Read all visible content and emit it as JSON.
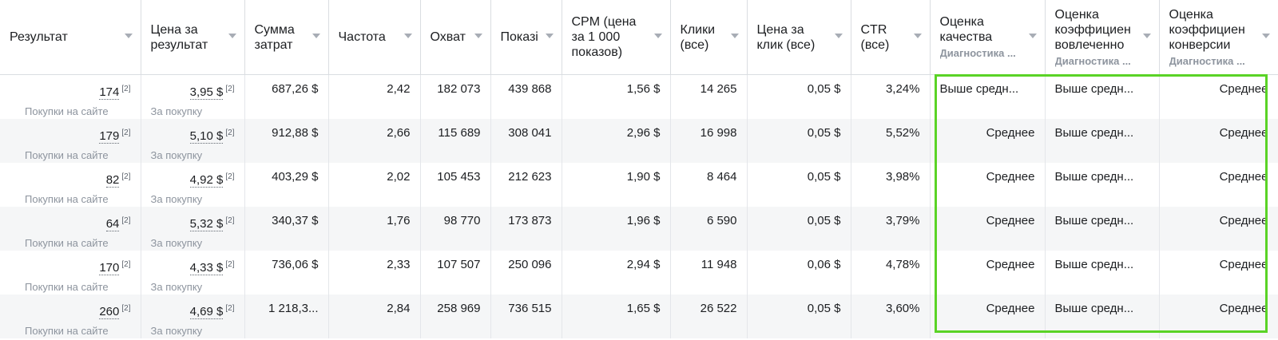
{
  "columns": [
    {
      "title": "Результат",
      "sub": ""
    },
    {
      "title": "Цена за\nрезультат",
      "sub": ""
    },
    {
      "title": "Сумма\nзатрат",
      "sub": ""
    },
    {
      "title": "Частота",
      "sub": ""
    },
    {
      "title": "Охват",
      "sub": ""
    },
    {
      "title": "Показі",
      "sub": ""
    },
    {
      "title": "CPM (цена\nза 1 000\nпоказов)",
      "sub": ""
    },
    {
      "title": "Клики\n(все)",
      "sub": ""
    },
    {
      "title": "Цена за\nклик (все)",
      "sub": ""
    },
    {
      "title": "CTR\n(все)",
      "sub": ""
    },
    {
      "title": "Оценка\nкачества",
      "sub": "Диагностика ..."
    },
    {
      "title": "Оценка\nкоэффициен\nвовлеченно",
      "sub": "Диагностика ..."
    },
    {
      "title": "Оценка\nкоэффициен\nконверсии",
      "sub": "Диагностика ..."
    }
  ],
  "ref_mark": "[2]",
  "result_sub": "Покупки на сайте",
  "price_sub": "За покупку",
  "rows": [
    {
      "result": "174",
      "price": "3,95 $",
      "spend": "687,26 $",
      "freq": "2,42",
      "reach": "182 073",
      "impr": "439 868",
      "cpm": "1,56 $",
      "clicks": "14 265",
      "cpc": "0,05 $",
      "ctr": "3,24%",
      "quality": "Выше средн...",
      "engagement": "Выше средн...",
      "conversion": "Среднее"
    },
    {
      "result": "179",
      "price": "5,10 $",
      "spend": "912,88 $",
      "freq": "2,66",
      "reach": "115 689",
      "impr": "308 041",
      "cpm": "2,96 $",
      "clicks": "16 998",
      "cpc": "0,05 $",
      "ctr": "5,52%",
      "quality": "Среднее",
      "engagement": "Выше средн...",
      "conversion": "Среднее"
    },
    {
      "result": "82",
      "price": "4,92 $",
      "spend": "403,29 $",
      "freq": "2,02",
      "reach": "105 453",
      "impr": "212 623",
      "cpm": "1,90 $",
      "clicks": "8 464",
      "cpc": "0,05 $",
      "ctr": "3,98%",
      "quality": "Среднее",
      "engagement": "Выше средн...",
      "conversion": "Среднее"
    },
    {
      "result": "64",
      "price": "5,32 $",
      "spend": "340,37 $",
      "freq": "1,76",
      "reach": "98 770",
      "impr": "173 873",
      "cpm": "1,96 $",
      "clicks": "6 590",
      "cpc": "0,05 $",
      "ctr": "3,79%",
      "quality": "Среднее",
      "engagement": "Выше средн...",
      "conversion": "Среднее"
    },
    {
      "result": "170",
      "price": "4,33 $",
      "spend": "736,06 $",
      "freq": "2,33",
      "reach": "107 507",
      "impr": "250 096",
      "cpm": "2,94 $",
      "clicks": "11 948",
      "cpc": "0,06 $",
      "ctr": "4,78%",
      "quality": "Среднее",
      "engagement": "Выше средн...",
      "conversion": "Среднее"
    },
    {
      "result": "260",
      "price": "4,69 $",
      "spend": "1 218,3...",
      "freq": "2,84",
      "reach": "258 969",
      "impr": "736 515",
      "cpm": "1,65 $",
      "clicks": "26 522",
      "cpc": "0,05 $",
      "ctr": "3,60%",
      "quality": "Среднее",
      "engagement": "Выше средн...",
      "conversion": "Среднее"
    }
  ],
  "highlight_color": "#5ad326"
}
